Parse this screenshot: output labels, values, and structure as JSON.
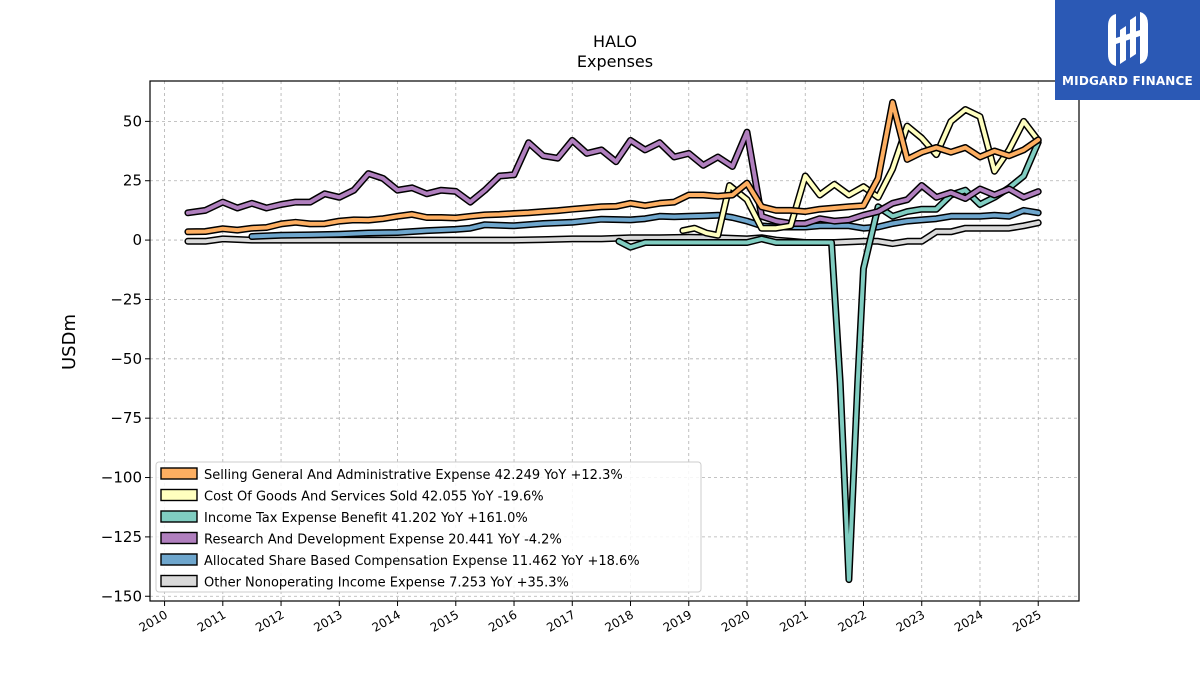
{
  "brand": {
    "name": "MIDGARD FINANCE",
    "bg_color": "#2b59b5"
  },
  "chart_data": {
    "type": "line",
    "title": "HALO",
    "subtitle": "Expenses",
    "ylabel": "USDm",
    "xlabel": "",
    "xlim": [
      2009.75,
      2025.7
    ],
    "ylim": [
      -152,
      67
    ],
    "yticks": [
      50,
      25,
      0,
      -25,
      -50,
      -75,
      -100,
      -125,
      -150
    ],
    "ytick_labels": [
      "50",
      "25",
      "0",
      "−25",
      "−50",
      "−75",
      "−100",
      "−125",
      "−150"
    ],
    "xticks": [
      2010,
      2011,
      2012,
      2013,
      2014,
      2015,
      2016,
      2017,
      2018,
      2019,
      2020,
      2021,
      2022,
      2023,
      2024,
      2025
    ],
    "xtick_labels": [
      "2010",
      "2011",
      "2012",
      "2013",
      "2014",
      "2015",
      "2016",
      "2017",
      "2018",
      "2019",
      "2020",
      "2021",
      "2022",
      "2023",
      "2024",
      "2025"
    ],
    "grid": true,
    "legend_position": "lower-left",
    "series": [
      {
        "name": "Selling General And Administrative Expense",
        "legend": "Selling General And Administrative Expense  42.249 YoY +12.3%",
        "color": "#fdae61",
        "points": [
          [
            2010.4,
            3.5
          ],
          [
            2010.7,
            3.6
          ],
          [
            2011.0,
            4.8
          ],
          [
            2011.25,
            4.2
          ],
          [
            2011.5,
            5
          ],
          [
            2011.75,
            5.3
          ],
          [
            2012.0,
            6.8
          ],
          [
            2012.25,
            7.5
          ],
          [
            2012.5,
            6.8
          ],
          [
            2012.75,
            6.9
          ],
          [
            2013.0,
            8
          ],
          [
            2013.25,
            8.5
          ],
          [
            2013.5,
            8.4
          ],
          [
            2013.75,
            9
          ],
          [
            2014.0,
            10
          ],
          [
            2014.25,
            10.8
          ],
          [
            2014.5,
            9.5
          ],
          [
            2014.75,
            9.5
          ],
          [
            2015.0,
            9.3
          ],
          [
            2015.25,
            10
          ],
          [
            2015.5,
            10.6
          ],
          [
            2015.75,
            10.8
          ],
          [
            2016.0,
            11.2
          ],
          [
            2016.25,
            11.5
          ],
          [
            2016.5,
            12
          ],
          [
            2016.75,
            12.4
          ],
          [
            2017.0,
            13
          ],
          [
            2017.25,
            13.5
          ],
          [
            2017.5,
            14
          ],
          [
            2017.75,
            14.2
          ],
          [
            2018.0,
            15.5
          ],
          [
            2018.25,
            14.5
          ],
          [
            2018.5,
            15.5
          ],
          [
            2018.75,
            16
          ],
          [
            2019.0,
            19
          ],
          [
            2019.25,
            19
          ],
          [
            2019.5,
            18.5
          ],
          [
            2019.75,
            19
          ],
          [
            2020.0,
            24
          ],
          [
            2020.25,
            14
          ],
          [
            2020.5,
            12.5
          ],
          [
            2020.75,
            12.5
          ],
          [
            2021.0,
            12
          ],
          [
            2021.25,
            13
          ],
          [
            2021.5,
            13.5
          ],
          [
            2021.75,
            14
          ],
          [
            2022.0,
            14.5
          ],
          [
            2022.25,
            26
          ],
          [
            2022.5,
            58
          ],
          [
            2022.75,
            34
          ],
          [
            2023.0,
            37
          ],
          [
            2023.25,
            39
          ],
          [
            2023.5,
            37
          ],
          [
            2023.75,
            39
          ],
          [
            2024.0,
            35
          ],
          [
            2024.25,
            37.5
          ],
          [
            2024.5,
            35.5
          ],
          [
            2024.75,
            38
          ],
          [
            2025.0,
            42.2
          ]
        ]
      },
      {
        "name": "Cost Of Goods And Services Sold",
        "legend": "Cost Of Goods And Services Sold  42.055 YoY -19.6%",
        "color": "#ffffbf",
        "points": [
          [
            2018.9,
            4
          ],
          [
            2019.1,
            5
          ],
          [
            2019.3,
            3
          ],
          [
            2019.5,
            2
          ],
          [
            2019.7,
            23
          ],
          [
            2019.9,
            19
          ],
          [
            2020.0,
            17
          ],
          [
            2020.25,
            5
          ],
          [
            2020.5,
            5
          ],
          [
            2020.75,
            6
          ],
          [
            2021.0,
            27
          ],
          [
            2021.25,
            19
          ],
          [
            2021.5,
            23.5
          ],
          [
            2021.75,
            19
          ],
          [
            2022.0,
            22.5
          ],
          [
            2022.25,
            18
          ],
          [
            2022.5,
            30
          ],
          [
            2022.75,
            48
          ],
          [
            2023.0,
            43
          ],
          [
            2023.25,
            36
          ],
          [
            2023.5,
            50
          ],
          [
            2023.75,
            55
          ],
          [
            2024.0,
            52
          ],
          [
            2024.25,
            29
          ],
          [
            2024.5,
            38
          ],
          [
            2024.75,
            50
          ],
          [
            2025.0,
            42
          ]
        ]
      },
      {
        "name": "Income Tax Expense Benefit",
        "legend": "Income Tax Expense Benefit  41.202 YoY +161.0%",
        "color": "#80cdc1",
        "points": [
          [
            2017.8,
            -0.5
          ],
          [
            2018.0,
            -3
          ],
          [
            2018.25,
            -1
          ],
          [
            2018.75,
            -1
          ],
          [
            2019.25,
            -1
          ],
          [
            2019.75,
            -1
          ],
          [
            2020.0,
            -1
          ],
          [
            2020.25,
            0.5
          ],
          [
            2020.5,
            -1
          ],
          [
            2020.75,
            -1
          ],
          [
            2021.0,
            -1
          ],
          [
            2021.25,
            -1
          ],
          [
            2021.45,
            -1
          ],
          [
            2021.6,
            -60
          ],
          [
            2021.75,
            -143
          ],
          [
            2021.9,
            -60
          ],
          [
            2022.0,
            -12
          ],
          [
            2022.25,
            14
          ],
          [
            2022.5,
            10
          ],
          [
            2022.75,
            12
          ],
          [
            2023.0,
            13
          ],
          [
            2023.25,
            13
          ],
          [
            2023.5,
            19
          ],
          [
            2023.75,
            21
          ],
          [
            2024.0,
            15
          ],
          [
            2024.25,
            18
          ],
          [
            2024.5,
            22
          ],
          [
            2024.75,
            27
          ],
          [
            2025.0,
            41.2
          ]
        ]
      },
      {
        "name": "Research And Development Expense",
        "legend": "Research And Development Expense  20.441 YoY -4.2%",
        "color": "#b07fbe",
        "points": [
          [
            2010.4,
            11.5
          ],
          [
            2010.7,
            12.5
          ],
          [
            2011.0,
            16
          ],
          [
            2011.25,
            13.5
          ],
          [
            2011.5,
            15.5
          ],
          [
            2011.75,
            13.5
          ],
          [
            2012.0,
            15
          ],
          [
            2012.25,
            16
          ],
          [
            2012.5,
            16
          ],
          [
            2012.75,
            19.5
          ],
          [
            2013.0,
            18
          ],
          [
            2013.25,
            21
          ],
          [
            2013.5,
            28
          ],
          [
            2013.75,
            26
          ],
          [
            2014.0,
            21
          ],
          [
            2014.25,
            22
          ],
          [
            2014.5,
            19.5
          ],
          [
            2014.75,
            21
          ],
          [
            2015.0,
            20.5
          ],
          [
            2015.25,
            16
          ],
          [
            2015.5,
            21
          ],
          [
            2015.75,
            27
          ],
          [
            2016.0,
            27.5
          ],
          [
            2016.25,
            41
          ],
          [
            2016.5,
            35.5
          ],
          [
            2016.75,
            34.5
          ],
          [
            2017.0,
            42
          ],
          [
            2017.25,
            36.5
          ],
          [
            2017.5,
            38
          ],
          [
            2017.75,
            33
          ],
          [
            2018.0,
            42
          ],
          [
            2018.25,
            38
          ],
          [
            2018.5,
            41
          ],
          [
            2018.75,
            35
          ],
          [
            2019.0,
            36.5
          ],
          [
            2019.25,
            31.5
          ],
          [
            2019.5,
            35
          ],
          [
            2019.75,
            31
          ],
          [
            2020.0,
            45.5
          ],
          [
            2020.25,
            10
          ],
          [
            2020.5,
            8
          ],
          [
            2020.75,
            7
          ],
          [
            2021.0,
            7
          ],
          [
            2021.25,
            9
          ],
          [
            2021.5,
            8
          ],
          [
            2021.75,
            8.5
          ],
          [
            2022.0,
            10.5
          ],
          [
            2022.25,
            12
          ],
          [
            2022.5,
            15.5
          ],
          [
            2022.75,
            17
          ],
          [
            2023.0,
            23
          ],
          [
            2023.25,
            18
          ],
          [
            2023.5,
            20
          ],
          [
            2023.75,
            17.5
          ],
          [
            2024.0,
            21.5
          ],
          [
            2024.25,
            19
          ],
          [
            2024.5,
            21.5
          ],
          [
            2024.75,
            18
          ],
          [
            2025.0,
            20.4
          ]
        ]
      },
      {
        "name": "Allocated Share Based Compensation Expense",
        "legend": "Allocated Share Based Compensation Expense  11.462 YoY +18.6%",
        "color": "#6ea6cd",
        "points": [
          [
            2011.5,
            1.5
          ],
          [
            2012.0,
            2
          ],
          [
            2012.5,
            2.2
          ],
          [
            2013.0,
            2.5
          ],
          [
            2013.5,
            3
          ],
          [
            2014.0,
            3.2
          ],
          [
            2014.5,
            4
          ],
          [
            2015.0,
            4.5
          ],
          [
            2015.25,
            5
          ],
          [
            2015.5,
            6.5
          ],
          [
            2016.0,
            6
          ],
          [
            2016.5,
            7
          ],
          [
            2017.0,
            7.5
          ],
          [
            2017.5,
            8.8
          ],
          [
            2018.0,
            8.5
          ],
          [
            2018.25,
            9
          ],
          [
            2018.5,
            10
          ],
          [
            2018.75,
            9.8
          ],
          [
            2019.0,
            10
          ],
          [
            2019.25,
            10.2
          ],
          [
            2019.5,
            10.5
          ],
          [
            2019.75,
            9.5
          ],
          [
            2020.0,
            8
          ],
          [
            2020.25,
            6
          ],
          [
            2020.5,
            5.5
          ],
          [
            2020.75,
            5.5
          ],
          [
            2021.0,
            5.5
          ],
          [
            2021.25,
            6
          ],
          [
            2021.5,
            6
          ],
          [
            2021.75,
            6
          ],
          [
            2022.0,
            5
          ],
          [
            2022.25,
            5.5
          ],
          [
            2022.5,
            7
          ],
          [
            2022.75,
            8
          ],
          [
            2023.0,
            8.5
          ],
          [
            2023.25,
            9
          ],
          [
            2023.5,
            10
          ],
          [
            2023.75,
            10
          ],
          [
            2024.0,
            10
          ],
          [
            2024.25,
            10.5
          ],
          [
            2024.5,
            10
          ],
          [
            2024.75,
            12.5
          ],
          [
            2025.0,
            11.5
          ]
        ]
      },
      {
        "name": "Other Nonoperating Income Expense",
        "legend": "Other Nonoperating Income Expense  7.253 YoY +35.3%",
        "color": "#d9d9d9",
        "points": [
          [
            2010.4,
            -0.5
          ],
          [
            2010.7,
            -0.5
          ],
          [
            2011.0,
            0.5
          ],
          [
            2011.5,
            0
          ],
          [
            2012.0,
            0
          ],
          [
            2012.5,
            0
          ],
          [
            2013.0,
            0
          ],
          [
            2013.5,
            0
          ],
          [
            2014.0,
            0
          ],
          [
            2014.5,
            0
          ],
          [
            2015.0,
            0
          ],
          [
            2015.5,
            0
          ],
          [
            2016.0,
            0
          ],
          [
            2016.5,
            0.2
          ],
          [
            2017.0,
            0.5
          ],
          [
            2017.5,
            0.5
          ],
          [
            2018.0,
            1
          ],
          [
            2018.5,
            1
          ],
          [
            2019.0,
            1.2
          ],
          [
            2019.5,
            1
          ],
          [
            2020.0,
            0.5
          ],
          [
            2020.25,
            1
          ],
          [
            2020.5,
            0
          ],
          [
            2020.75,
            -0.5
          ],
          [
            2021.0,
            -1
          ],
          [
            2021.5,
            -1
          ],
          [
            2022.0,
            -0.5
          ],
          [
            2022.25,
            -0.5
          ],
          [
            2022.5,
            -1.5
          ],
          [
            2022.75,
            -0.5
          ],
          [
            2023.0,
            -0.5
          ],
          [
            2023.25,
            3.5
          ],
          [
            2023.5,
            3.5
          ],
          [
            2023.75,
            5
          ],
          [
            2024.0,
            5
          ],
          [
            2024.25,
            5
          ],
          [
            2024.5,
            5
          ],
          [
            2024.75,
            6
          ],
          [
            2025.0,
            7.3
          ]
        ]
      }
    ]
  }
}
